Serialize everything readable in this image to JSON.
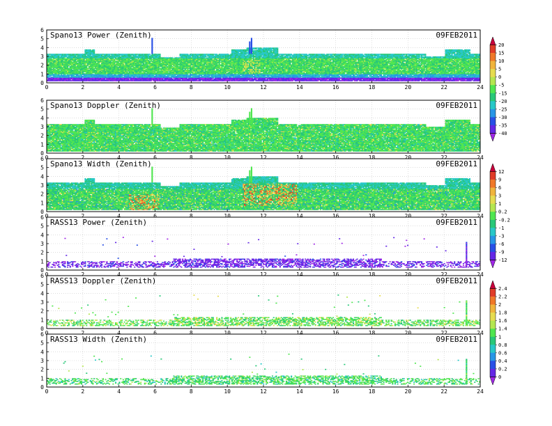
{
  "page": {
    "background": "#ffffff"
  },
  "chart_data": [
    {
      "type": "heatmap",
      "title": "Spano13 Power (Zenith)",
      "date": "09FEB2011",
      "xlim": [
        0,
        24
      ],
      "ylim": [
        0,
        6
      ],
      "xticks": [
        0,
        2,
        4,
        6,
        8,
        10,
        12,
        14,
        16,
        18,
        20,
        22,
        24
      ],
      "yticks": [
        0,
        1,
        2,
        3,
        4,
        5,
        6
      ],
      "grid": true,
      "colorbar_ticks": [
        "20",
        "15",
        "10",
        "5",
        "0",
        "-5",
        "-15",
        "-20",
        "-25",
        "-30",
        "-35",
        "-40"
      ],
      "typical_value": -18,
      "field": "spano_power"
    },
    {
      "type": "heatmap",
      "title": "Spano13 Doppler (Zenith)",
      "date": "09FEB2011",
      "xlim": [
        0,
        24
      ],
      "ylim": [
        0,
        6
      ],
      "xticks": [
        0,
        2,
        4,
        6,
        8,
        10,
        12,
        14,
        16,
        18,
        20,
        22,
        24
      ],
      "yticks": [
        0,
        1,
        2,
        3,
        4,
        5,
        6
      ],
      "grid": true,
      "colorbar_ticks": [],
      "typical_value": -20,
      "field": "spano_doppler"
    },
    {
      "type": "heatmap",
      "title": "Spano13 Width (Zenith)",
      "date": "09FEB2011",
      "xlim": [
        0,
        24
      ],
      "ylim": [
        0,
        6
      ],
      "xticks": [
        0,
        2,
        4,
        6,
        8,
        10,
        12,
        14,
        16,
        18,
        20,
        22,
        24
      ],
      "yticks": [
        0,
        1,
        2,
        3,
        4,
        5,
        6
      ],
      "grid": true,
      "colorbar_ticks": [
        "12",
        "9",
        "6",
        "3",
        "1",
        "0.2",
        "-0.2",
        "-1",
        "-3",
        "-6",
        "-9",
        "-12"
      ],
      "typical_value": -1,
      "field": "spano_width"
    },
    {
      "type": "heatmap",
      "title": "RASS13 Power (Zenith)",
      "date": "09FEB2011",
      "xlim": [
        0,
        24
      ],
      "ylim": [
        0,
        6
      ],
      "xticks": [
        0,
        2,
        4,
        6,
        8,
        10,
        12,
        14,
        16,
        18,
        20,
        22,
        24
      ],
      "yticks": [
        0,
        1,
        2,
        3,
        4,
        5,
        6
      ],
      "grid": true,
      "colorbar_ticks": [],
      "typical_value": -11,
      "field": "rass_power"
    },
    {
      "type": "heatmap",
      "title": "RASS13 Doppler (Zenith)",
      "date": "09FEB2011",
      "xlim": [
        0,
        24
      ],
      "ylim": [
        0,
        6
      ],
      "xticks": [
        0,
        2,
        4,
        6,
        8,
        10,
        12,
        14,
        16,
        18,
        20,
        22,
        24
      ],
      "yticks": [
        0,
        1,
        2,
        3,
        4,
        5,
        6
      ],
      "grid": true,
      "colorbar_ticks": [
        "2.4",
        "2.2",
        "2",
        "1.8",
        "1.6",
        "1.4",
        "1",
        "0.8",
        "0.6",
        "0.4",
        "0.2",
        "0"
      ],
      "typical_value": 1.4,
      "field": "rass_doppler"
    },
    {
      "type": "heatmap",
      "title": "RASS13 Width (Zenith)",
      "date": "09FEB2011",
      "xlim": [
        0,
        24
      ],
      "ylim": [
        0,
        6
      ],
      "xticks": [
        0,
        2,
        4,
        6,
        8,
        10,
        12,
        14,
        16,
        18,
        20,
        22,
        24
      ],
      "yticks": [
        0,
        1,
        2,
        3,
        4,
        5,
        6
      ],
      "grid": true,
      "colorbar_ticks": [],
      "typical_value": 1,
      "field": "rass_width"
    }
  ],
  "colorbars": [
    {
      "ticks": [
        "20",
        "15",
        "10",
        "5",
        "0",
        "-5",
        "-15",
        "-20",
        "-25",
        "-30",
        "-35",
        "-40"
      ],
      "colors": [
        "#c8003c",
        "#e03c28",
        "#f07828",
        "#f0b43c",
        "#e6dc50",
        "#b4e650",
        "#50e650",
        "#28c878",
        "#28c8c8",
        "#2896e6",
        "#2850e6",
        "#6428e6",
        "#a028e6"
      ]
    },
    {
      "ticks": [
        "12",
        "9",
        "6",
        "3",
        "1",
        "0.2",
        "-0.2",
        "-1",
        "-3",
        "-6",
        "-9",
        "-12"
      ],
      "colors": [
        "#c8003c",
        "#e03c28",
        "#f07828",
        "#f0b43c",
        "#e6dc50",
        "#b4e650",
        "#50e650",
        "#28c878",
        "#28c8c8",
        "#2896e6",
        "#2850e6",
        "#6428e6",
        "#a028e6"
      ]
    },
    {
      "ticks": [
        "2.4",
        "2.2",
        "2",
        "1.8",
        "1.6",
        "1.4",
        "1",
        "0.8",
        "0.6",
        "0.4",
        "0.2",
        "0"
      ],
      "colors": [
        "#c8003c",
        "#e03c28",
        "#f07828",
        "#f0b43c",
        "#e6dc50",
        "#b4e650",
        "#50e650",
        "#28c878",
        "#28c8c8",
        "#2896e6",
        "#2850e6",
        "#6428e6",
        "#a028e6"
      ]
    }
  ]
}
